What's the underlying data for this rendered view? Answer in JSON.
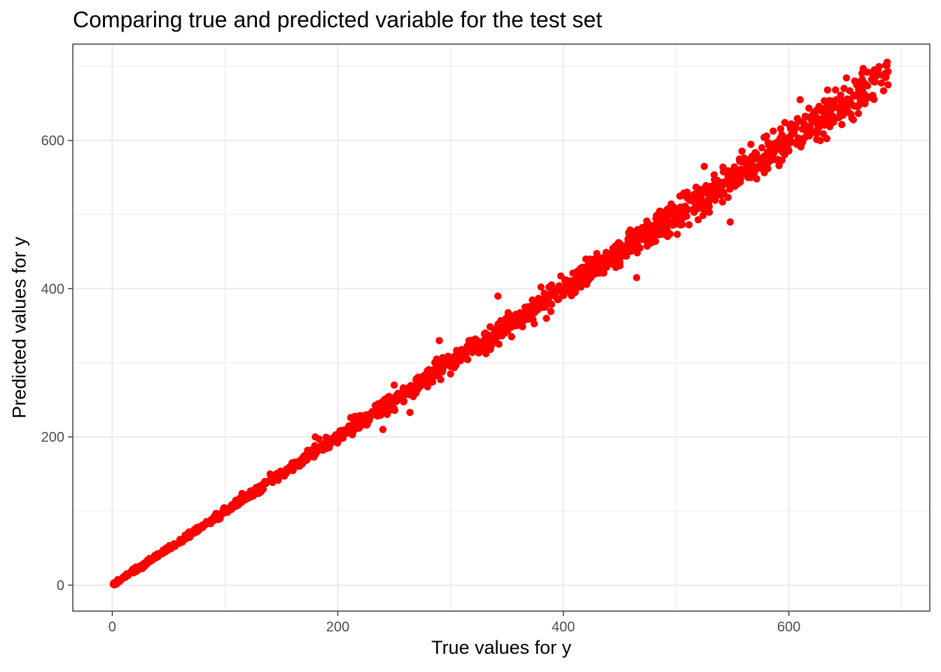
{
  "chart_data": {
    "type": "scatter",
    "title": "Comparing true and predicted variable for the test set",
    "xlabel": "True values for y",
    "ylabel": "Predicted values for y",
    "xlim": [
      -35,
      725
    ],
    "ylim": [
      -35,
      730
    ],
    "x_ticks": [
      0,
      200,
      400,
      600
    ],
    "x_tick_labels": [
      "0",
      "200",
      "400",
      "600"
    ],
    "y_ticks": [
      0,
      200,
      400,
      600
    ],
    "y_tick_labels": [
      "0",
      "200",
      "400",
      "600"
    ],
    "grid": true,
    "legend": "none",
    "point_color": "#ff0000",
    "series": [
      {
        "points": [
          [
            1,
            1
          ],
          [
            3,
            3
          ],
          [
            5,
            6
          ],
          [
            8,
            8
          ],
          [
            10,
            11
          ],
          [
            14,
            13
          ],
          [
            18,
            19
          ],
          [
            22,
            22
          ],
          [
            27,
            28
          ],
          [
            31,
            31
          ],
          [
            36,
            35
          ],
          [
            40,
            41
          ],
          [
            45,
            44
          ],
          [
            50,
            50
          ],
          [
            55,
            56
          ],
          [
            60,
            59
          ],
          [
            66,
            67
          ],
          [
            72,
            71
          ],
          [
            78,
            79
          ],
          [
            84,
            83
          ],
          [
            90,
            91
          ],
          [
            96,
            95
          ],
          [
            102,
            103
          ],
          [
            108,
            106
          ],
          [
            114,
            116
          ],
          [
            120,
            118
          ],
          [
            126,
            128
          ],
          [
            132,
            130
          ],
          [
            138,
            140
          ],
          [
            144,
            142
          ],
          [
            150,
            153
          ],
          [
            156,
            154
          ],
          [
            162,
            166
          ],
          [
            168,
            165
          ],
          [
            174,
            178
          ],
          [
            180,
            176
          ],
          [
            186,
            190
          ],
          [
            192,
            188
          ],
          [
            198,
            202
          ],
          [
            204,
            199
          ],
          [
            210,
            215
          ],
          [
            216,
            211
          ],
          [
            222,
            228
          ],
          [
            228,
            224
          ],
          [
            234,
            240
          ],
          [
            240,
            236
          ],
          [
            246,
            252
          ],
          [
            252,
            248
          ],
          [
            258,
            265
          ],
          [
            264,
            259
          ],
          [
            270,
            277
          ],
          [
            276,
            271
          ],
          [
            282,
            290
          ],
          [
            288,
            283
          ],
          [
            294,
            302
          ],
          [
            300,
            295
          ],
          [
            306,
            315
          ],
          [
            312,
            306
          ],
          [
            318,
            327
          ],
          [
            324,
            318
          ],
          [
            330,
            339
          ],
          [
            336,
            329
          ],
          [
            342,
            351
          ],
          [
            348,
            340
          ],
          [
            354,
            363
          ],
          [
            360,
            352
          ],
          [
            366,
            375
          ],
          [
            372,
            363
          ],
          [
            378,
            387
          ],
          [
            384,
            375
          ],
          [
            390,
            399
          ],
          [
            396,
            386
          ],
          [
            402,
            412
          ],
          [
            408,
            397
          ],
          [
            414,
            425
          ],
          [
            420,
            409
          ],
          [
            426,
            437
          ],
          [
            432,
            421
          ],
          [
            438,
            449
          ],
          [
            444,
            433
          ],
          [
            450,
            461
          ],
          [
            456,
            444
          ],
          [
            462,
            473
          ],
          [
            468,
            455
          ],
          [
            474,
            486
          ],
          [
            480,
            467
          ],
          [
            486,
            498
          ],
          [
            492,
            479
          ],
          [
            498,
            510
          ],
          [
            504,
            491
          ],
          [
            510,
            522
          ],
          [
            516,
            503
          ],
          [
            522,
            534
          ],
          [
            528,
            514
          ],
          [
            534,
            547
          ],
          [
            540,
            526
          ],
          [
            546,
            559
          ],
          [
            552,
            538
          ],
          [
            558,
            571
          ],
          [
            564,
            550
          ],
          [
            570,
            583
          ],
          [
            576,
            562
          ],
          [
            582,
            595
          ],
          [
            588,
            574
          ],
          [
            594,
            607
          ],
          [
            600,
            586
          ],
          [
            606,
            619
          ],
          [
            612,
            598
          ],
          [
            618,
            631
          ],
          [
            624,
            610
          ],
          [
            630,
            643
          ],
          [
            636,
            622
          ],
          [
            642,
            655
          ],
          [
            648,
            634
          ],
          [
            654,
            667
          ],
          [
            660,
            646
          ],
          [
            666,
            679
          ],
          [
            672,
            658
          ],
          [
            678,
            688
          ],
          [
            684,
            667
          ],
          [
            688,
            675
          ],
          [
            686,
            685
          ],
          [
            670,
            692
          ],
          [
            264,
            233
          ],
          [
            290,
            330
          ],
          [
            342,
            390
          ],
          [
            362,
            352
          ],
          [
            385,
            360
          ],
          [
            465,
            415
          ],
          [
            548,
            490
          ],
          [
            525,
            565
          ],
          [
            240,
            210
          ],
          [
            300,
            285
          ],
          [
            610,
            655
          ],
          [
            616,
            612
          ],
          [
            460,
            470
          ],
          [
            420,
            440
          ],
          [
            250,
            270
          ],
          [
            180,
            200
          ],
          [
            140,
            150
          ]
        ]
      }
    ]
  }
}
